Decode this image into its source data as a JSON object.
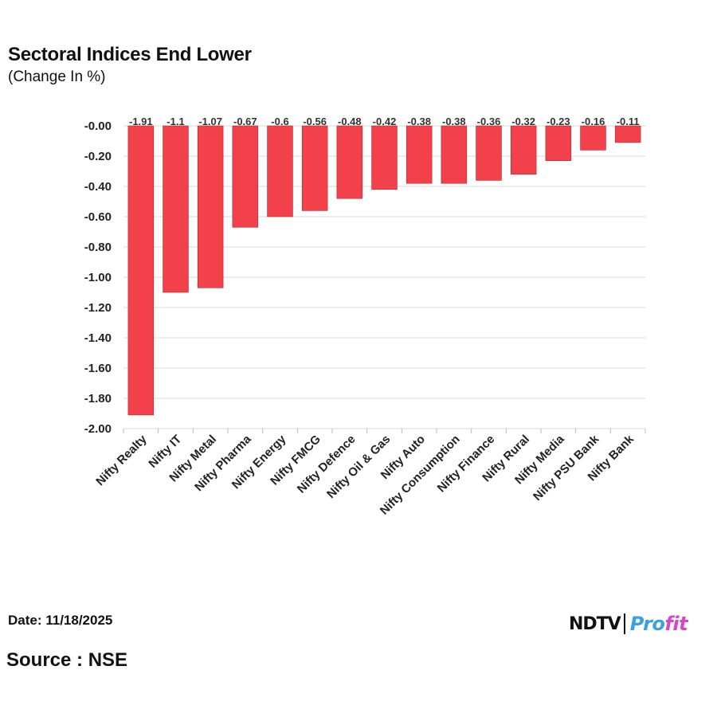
{
  "header": {
    "title": "Sectoral Indices End Lower",
    "subtitle": "(Change In %)"
  },
  "footer": {
    "date": "Date: 11/18/2025",
    "source": "Source : NSE",
    "logo_left": "NDTV",
    "logo_right_a": "Pro",
    "logo_right_b": "fit"
  },
  "colors": {
    "bar": "#f2414a",
    "bar_edge": "#b02a30",
    "grid": "#d9d9d9"
  },
  "chart_data": {
    "type": "bar",
    "title": "Sectoral Indices End Lower",
    "subtitle": "(Change In %)",
    "xlabel": "",
    "ylabel": "",
    "ylim": [
      -2.0,
      0.0
    ],
    "yticks": [
      -0.0,
      -0.2,
      -0.4,
      -0.6,
      -0.8,
      -1.0,
      -1.2,
      -1.4,
      -1.6,
      -1.8,
      -2.0
    ],
    "ytick_labels": [
      "-0.00",
      "-0.20",
      "-0.40",
      "-0.60",
      "-0.80",
      "-1.00",
      "-1.20",
      "-1.40",
      "-1.60",
      "-1.80",
      "-2.00"
    ],
    "grid": true,
    "categories": [
      "Nifty Realty",
      "Nifty IT",
      "Nifty Metal",
      "Nifty Pharma",
      "Nifty Energy",
      "Nifty FMCG",
      "Nifty Defence",
      "Nifty Oil & Gas",
      "Nifty Auto",
      "Nifty Consumption",
      "Nifty Finance",
      "Nifty Rural",
      "Nifty Media",
      "Nifty PSU Bank",
      "Nifty Bank"
    ],
    "values": [
      -1.91,
      -1.1,
      -1.07,
      -0.67,
      -0.6,
      -0.56,
      -0.48,
      -0.42,
      -0.38,
      -0.38,
      -0.36,
      -0.32,
      -0.23,
      -0.16,
      -0.11
    ],
    "data_labels": [
      "-1.91",
      "-1.1",
      "-1.07",
      "-0.67",
      "-0.6",
      "-0.56",
      "-0.48",
      "-0.42",
      "-0.38",
      "-0.38",
      "-0.36",
      "-0.32",
      "-0.23",
      "-0.16",
      "-0.11"
    ]
  }
}
